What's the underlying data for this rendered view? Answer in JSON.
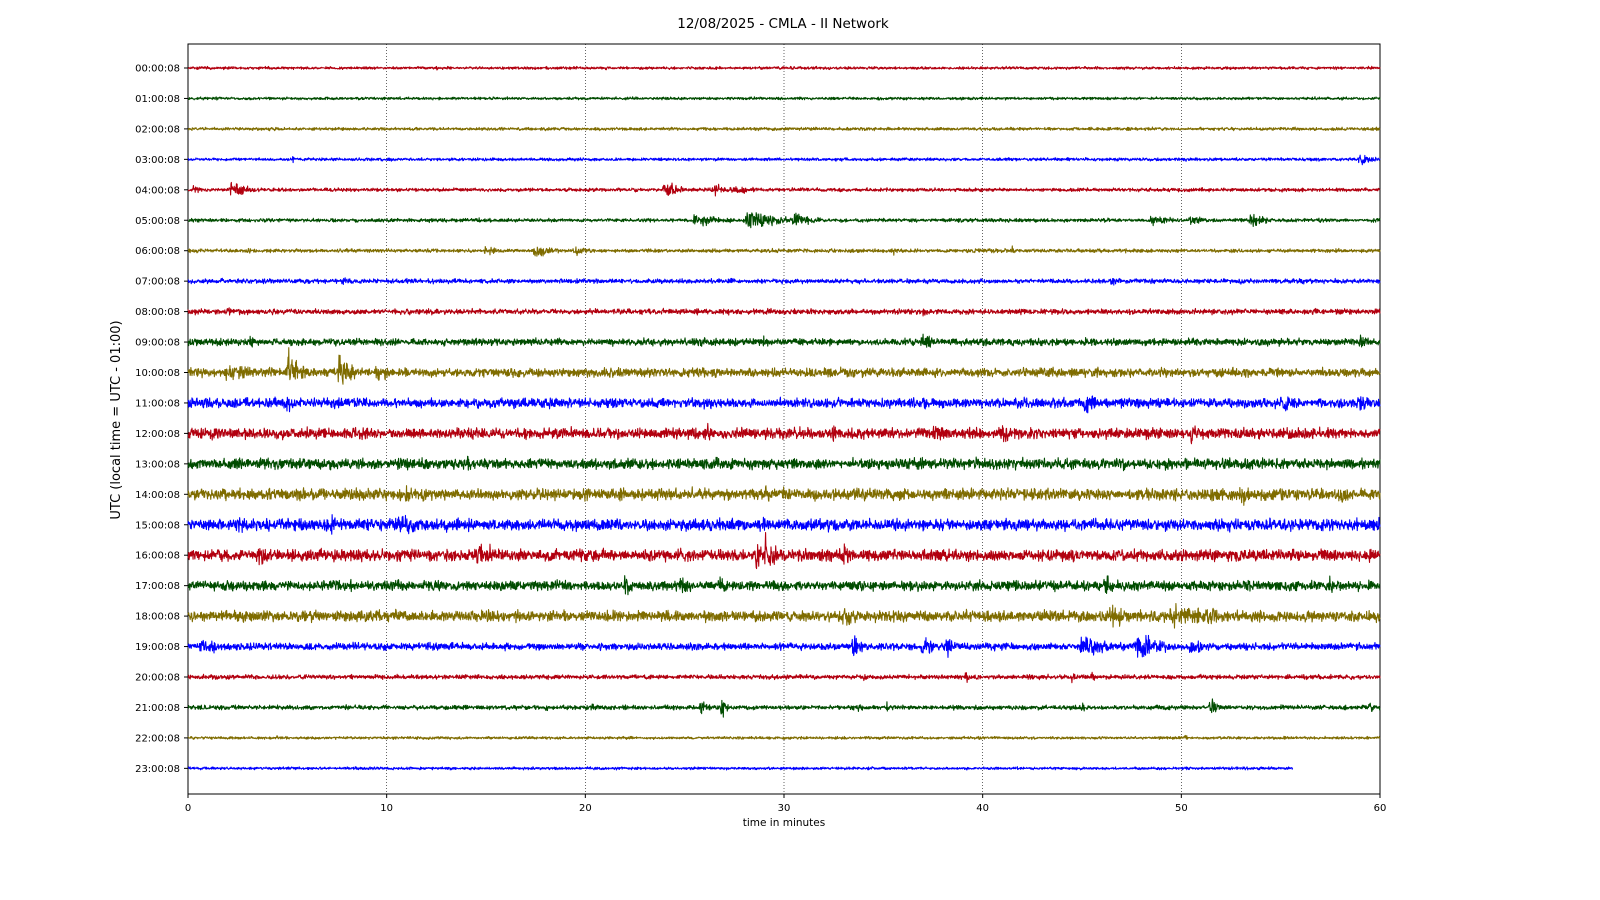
{
  "chart_data": {
    "type": "line",
    "title": "12/08/2025 - CMLA - II Network",
    "xlabel": "time in minutes",
    "ylabel": "UTC (local time = UTC - 01:00)",
    "xlim": [
      0,
      60
    ],
    "x_ticks": [
      "0",
      "10",
      "20",
      "30",
      "40",
      "50",
      "60"
    ],
    "x_tick_values": [
      0,
      10,
      20,
      30,
      40,
      50,
      60
    ],
    "vertical_grid": true,
    "vertical_grid_style": "dotted",
    "colors": [
      "#b2000f",
      "#004c00",
      "#7f6c00",
      "#0000ff"
    ],
    "series": [
      {
        "label": "00:00:08",
        "amplitude": 0.15,
        "end_minute": 60,
        "events": [
          {
            "t": 12.5,
            "amp": 0.25,
            "dur": 0.2
          },
          {
            "t": 19.6,
            "amp": 0.2,
            "dur": 0.2
          }
        ]
      },
      {
        "label": "01:00:08",
        "amplitude": 0.15,
        "end_minute": 60,
        "events": [
          {
            "t": 20.0,
            "amp": 0.18,
            "dur": 0.3
          }
        ]
      },
      {
        "label": "02:00:08",
        "amplitude": 0.17,
        "end_minute": 60,
        "events": [
          {
            "t": 12.5,
            "amp": 0.22,
            "dur": 0.4
          },
          {
            "t": 25.2,
            "amp": 0.18,
            "dur": 0.3
          },
          {
            "t": 53.0,
            "amp": 0.18,
            "dur": 0.3
          }
        ]
      },
      {
        "label": "03:00:08",
        "amplitude": 0.17,
        "end_minute": 60,
        "events": [
          {
            "t": 5.3,
            "amp": 0.3,
            "dur": 0.2
          },
          {
            "t": 45.2,
            "amp": 0.3,
            "dur": 0.2
          },
          {
            "t": 59.0,
            "amp": 0.55,
            "dur": 1.3
          }
        ]
      },
      {
        "label": "04:00:08",
        "amplitude": 0.2,
        "end_minute": 60,
        "events": [
          {
            "t": 0.3,
            "amp": 0.5,
            "dur": 0.7
          },
          {
            "t": 2.2,
            "amp": 0.9,
            "dur": 1.5
          },
          {
            "t": 24.0,
            "amp": 1.0,
            "dur": 1.2
          },
          {
            "t": 26.5,
            "amp": 0.55,
            "dur": 3.5
          }
        ]
      },
      {
        "label": "05:00:08",
        "amplitude": 0.2,
        "end_minute": 60,
        "events": [
          {
            "t": 14.5,
            "amp": 0.4,
            "dur": 0.8
          },
          {
            "t": 25.5,
            "amp": 0.7,
            "dur": 2.5
          },
          {
            "t": 28.2,
            "amp": 1.3,
            "dur": 2.5
          },
          {
            "t": 30.5,
            "amp": 0.9,
            "dur": 1.5
          },
          {
            "t": 48.5,
            "amp": 0.5,
            "dur": 2.0
          },
          {
            "t": 50.5,
            "amp": 0.65,
            "dur": 1.0
          },
          {
            "t": 53.5,
            "amp": 0.9,
            "dur": 1.2
          },
          {
            "t": 57.0,
            "amp": 0.35,
            "dur": 1.0
          }
        ]
      },
      {
        "label": "06:00:08",
        "amplitude": 0.2,
        "end_minute": 60,
        "events": [
          {
            "t": 3.0,
            "amp": 0.3,
            "dur": 0.5
          },
          {
            "t": 15.0,
            "amp": 0.55,
            "dur": 1.0
          },
          {
            "t": 17.5,
            "amp": 0.75,
            "dur": 1.5
          },
          {
            "t": 19.5,
            "amp": 0.55,
            "dur": 1.0
          },
          {
            "t": 35.5,
            "amp": 0.4,
            "dur": 0.5
          },
          {
            "t": 41.5,
            "amp": 0.45,
            "dur": 0.5
          }
        ]
      },
      {
        "label": "07:00:08",
        "amplitude": 0.25,
        "end_minute": 60,
        "events": [
          {
            "t": 7.8,
            "amp": 0.45,
            "dur": 0.6
          },
          {
            "t": 18.0,
            "amp": 0.3,
            "dur": 0.5
          },
          {
            "t": 46.5,
            "amp": 0.45,
            "dur": 1.5
          },
          {
            "t": 53.0,
            "amp": 0.35,
            "dur": 0.5
          }
        ]
      },
      {
        "label": "08:00:08",
        "amplitude": 0.3,
        "end_minute": 60,
        "events": [
          {
            "t": 2.0,
            "amp": 0.6,
            "dur": 0.7
          },
          {
            "t": 23.5,
            "amp": 0.4,
            "dur": 1.0
          },
          {
            "t": 25.5,
            "amp": 0.55,
            "dur": 0.5
          },
          {
            "t": 37.0,
            "amp": 0.45,
            "dur": 1.0
          }
        ]
      },
      {
        "label": "09:00:08",
        "amplitude": 0.4,
        "end_minute": 60,
        "events": [
          {
            "t": 3.0,
            "amp": 0.7,
            "dur": 1.0
          },
          {
            "t": 29.0,
            "amp": 0.55,
            "dur": 1.0
          },
          {
            "t": 37.0,
            "amp": 0.8,
            "dur": 2.0
          },
          {
            "t": 59.0,
            "amp": 0.8,
            "dur": 1.0
          }
        ]
      },
      {
        "label": "10:00:08",
        "amplitude": 0.5,
        "end_minute": 60,
        "events": [
          {
            "t": 2.0,
            "amp": 1.0,
            "dur": 3.0
          },
          {
            "t": 5.1,
            "amp": 2.3,
            "dur": 1.2
          },
          {
            "t": 7.6,
            "amp": 1.9,
            "dur": 1.0
          },
          {
            "t": 9.5,
            "amp": 0.8,
            "dur": 2.0
          },
          {
            "t": 37.5,
            "amp": 0.7,
            "dur": 1.5
          }
        ]
      },
      {
        "label": "11:00:08",
        "amplitude": 0.55,
        "end_minute": 60,
        "events": [
          {
            "t": 5.0,
            "amp": 0.9,
            "dur": 1.0
          },
          {
            "t": 36.5,
            "amp": 0.7,
            "dur": 0.5
          },
          {
            "t": 45.2,
            "amp": 1.2,
            "dur": 1.5
          },
          {
            "t": 55.0,
            "amp": 0.8,
            "dur": 2.0
          },
          {
            "t": 59.0,
            "amp": 1.0,
            "dur": 1.2
          }
        ]
      },
      {
        "label": "12:00:08",
        "amplitude": 0.6,
        "end_minute": 60,
        "events": [
          {
            "t": 26.0,
            "amp": 1.0,
            "dur": 1.0
          },
          {
            "t": 32.5,
            "amp": 0.9,
            "dur": 0.5
          },
          {
            "t": 37.5,
            "amp": 0.9,
            "dur": 2.0
          },
          {
            "t": 41.0,
            "amp": 0.8,
            "dur": 1.5
          },
          {
            "t": 50.5,
            "amp": 1.1,
            "dur": 1.2
          }
        ]
      },
      {
        "label": "13:00:08",
        "amplitude": 0.6,
        "end_minute": 60,
        "events": [
          {
            "t": 6.5,
            "amp": 0.8,
            "dur": 1.0
          },
          {
            "t": 14.0,
            "amp": 0.8,
            "dur": 1.0
          },
          {
            "t": 26.5,
            "amp": 0.8,
            "dur": 1.0
          },
          {
            "t": 47.0,
            "amp": 0.8,
            "dur": 1.0
          }
        ]
      },
      {
        "label": "14:00:08",
        "amplitude": 0.65,
        "end_minute": 60,
        "events": [
          {
            "t": 7.0,
            "amp": 0.8,
            "dur": 1.0
          },
          {
            "t": 11.0,
            "amp": 0.9,
            "dur": 1.0
          },
          {
            "t": 29.0,
            "amp": 0.9,
            "dur": 0.5
          },
          {
            "t": 53.0,
            "amp": 1.2,
            "dur": 1.0
          },
          {
            "t": 58.0,
            "amp": 0.9,
            "dur": 1.5
          }
        ]
      },
      {
        "label": "15:00:08",
        "amplitude": 0.65,
        "end_minute": 60,
        "events": [
          {
            "t": 2.5,
            "amp": 0.9,
            "dur": 1.5
          },
          {
            "t": 7.0,
            "amp": 1.5,
            "dur": 0.8
          },
          {
            "t": 10.5,
            "amp": 1.2,
            "dur": 2.5
          },
          {
            "t": 13.0,
            "amp": 0.9,
            "dur": 1.5
          },
          {
            "t": 29.0,
            "amp": 0.8,
            "dur": 1.0
          }
        ]
      },
      {
        "label": "16:00:08",
        "amplitude": 0.65,
        "end_minute": 60,
        "events": [
          {
            "t": 3.5,
            "amp": 0.9,
            "dur": 3.0
          },
          {
            "t": 14.5,
            "amp": 1.0,
            "dur": 3.5
          },
          {
            "t": 28.5,
            "amp": 1.3,
            "dur": 2.5
          },
          {
            "t": 29.1,
            "amp": 2.2,
            "dur": 0.8
          },
          {
            "t": 33.0,
            "amp": 0.9,
            "dur": 2.5
          }
        ]
      },
      {
        "label": "17:00:08",
        "amplitude": 0.55,
        "end_minute": 60,
        "events": [
          {
            "t": 22.0,
            "amp": 0.8,
            "dur": 2.0
          },
          {
            "t": 24.8,
            "amp": 1.3,
            "dur": 0.7
          },
          {
            "t": 26.8,
            "amp": 0.9,
            "dur": 1.0
          },
          {
            "t": 46.2,
            "amp": 1.4,
            "dur": 0.7
          },
          {
            "t": 57.5,
            "amp": 0.8,
            "dur": 0.5
          }
        ]
      },
      {
        "label": "18:00:08",
        "amplitude": 0.6,
        "end_minute": 60,
        "events": [
          {
            "t": 10.5,
            "amp": 0.8,
            "dur": 1.5
          },
          {
            "t": 33.0,
            "amp": 0.9,
            "dur": 3.0
          },
          {
            "t": 46.5,
            "amp": 1.6,
            "dur": 1.2
          },
          {
            "t": 49.5,
            "amp": 1.3,
            "dur": 5.0
          }
        ]
      },
      {
        "label": "19:00:08",
        "amplitude": 0.4,
        "end_minute": 60,
        "events": [
          {
            "t": 0.7,
            "amp": 1.3,
            "dur": 1.2
          },
          {
            "t": 33.5,
            "amp": 1.4,
            "dur": 0.7
          },
          {
            "t": 37.0,
            "amp": 1.0,
            "dur": 1.5
          },
          {
            "t": 38.2,
            "amp": 1.6,
            "dur": 0.5
          },
          {
            "t": 45.0,
            "amp": 1.4,
            "dur": 2.0
          },
          {
            "t": 47.8,
            "amp": 1.5,
            "dur": 2.0
          },
          {
            "t": 50.5,
            "amp": 0.8,
            "dur": 1.5
          }
        ]
      },
      {
        "label": "20:00:08",
        "amplitude": 0.25,
        "end_minute": 60,
        "events": [
          {
            "t": 2.0,
            "amp": 0.5,
            "dur": 0.3
          },
          {
            "t": 34.0,
            "amp": 0.6,
            "dur": 0.4
          },
          {
            "t": 39.2,
            "amp": 0.6,
            "dur": 0.4
          },
          {
            "t": 44.5,
            "amp": 0.5,
            "dur": 0.4
          },
          {
            "t": 45.5,
            "amp": 0.6,
            "dur": 0.4
          },
          {
            "t": 51.0,
            "amp": 0.4,
            "dur": 0.5
          }
        ]
      },
      {
        "label": "21:00:08",
        "amplitude": 0.25,
        "end_minute": 60,
        "events": [
          {
            "t": 18.0,
            "amp": 0.5,
            "dur": 0.3
          },
          {
            "t": 20.3,
            "amp": 0.6,
            "dur": 0.5
          },
          {
            "t": 25.9,
            "amp": 1.2,
            "dur": 0.4
          },
          {
            "t": 26.9,
            "amp": 1.1,
            "dur": 0.4
          },
          {
            "t": 33.8,
            "amp": 0.6,
            "dur": 0.3
          },
          {
            "t": 35.2,
            "amp": 0.5,
            "dur": 0.3
          },
          {
            "t": 45.0,
            "amp": 0.5,
            "dur": 0.3
          },
          {
            "t": 51.5,
            "amp": 1.2,
            "dur": 0.5
          },
          {
            "t": 59.5,
            "amp": 0.6,
            "dur": 0.3
          }
        ]
      },
      {
        "label": "22:00:08",
        "amplitude": 0.15,
        "end_minute": 60,
        "events": [
          {
            "t": 4.5,
            "amp": 0.25,
            "dur": 0.5
          },
          {
            "t": 50.2,
            "amp": 0.3,
            "dur": 0.5
          }
        ]
      },
      {
        "label": "23:00:08",
        "amplitude": 0.15,
        "end_minute": 55.6,
        "events": [
          {
            "t": 18.5,
            "amp": 0.2,
            "dur": 0.3
          },
          {
            "t": 54.5,
            "amp": 0.25,
            "dur": 0.3
          }
        ]
      }
    ]
  }
}
